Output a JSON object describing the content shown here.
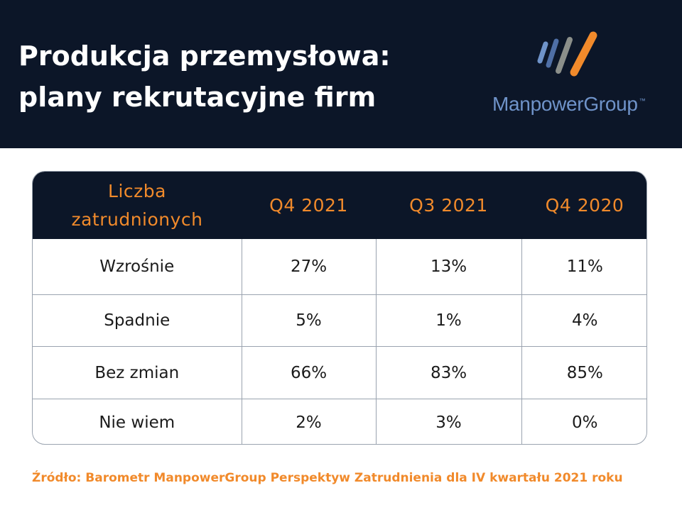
{
  "header": {
    "title_line1": "Produkcja przemysłowa:",
    "title_line2": "plany rekrutacyjne firm",
    "brand": "ManpowerGroup",
    "brand_tm": "™",
    "colors": {
      "background": "#0c1628",
      "title": "#ffffff",
      "brand_text": "#6f93c9"
    }
  },
  "logo": {
    "icon": "manpowergroup-stripes-icon",
    "stripe_colors": [
      "#6f93c9",
      "#4f6fa6",
      "#8b8f8a",
      "#f18a2b"
    ]
  },
  "table": {
    "header_first_line1": "Liczba",
    "header_first_line2": "zatrudnionych",
    "colors": {
      "header_bg": "#0c1628",
      "header_text": "#f18a2b",
      "grid": "#9aa3af"
    }
  },
  "chart_data": {
    "type": "table",
    "columns": [
      "Q4 2021",
      "Q3 2021",
      "Q4 2020"
    ],
    "rows": [
      {
        "label": "Wzrośnie",
        "values": [
          "27%",
          "13%",
          "11%"
        ]
      },
      {
        "label": "Spadnie",
        "values": [
          "5%",
          "1%",
          "4%"
        ]
      },
      {
        "label": "Bez zmian",
        "values": [
          "66%",
          "83%",
          "85%"
        ]
      },
      {
        "label": "Nie wiem",
        "values": [
          "2%",
          "3%",
          "0%"
        ]
      }
    ]
  },
  "footer": {
    "source": "Źródło: Barometr ManpowerGroup Perspektyw Zatrudnienia dla IV kwartału 2021 roku",
    "color": "#f18a2b"
  }
}
